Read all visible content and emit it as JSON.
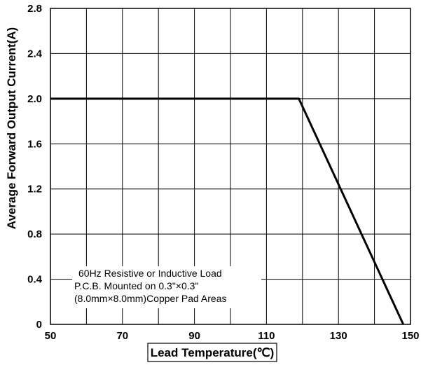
{
  "chart_data": {
    "type": "line",
    "title": "",
    "xlabel": "Lead Temperature(℃)",
    "ylabel": "Average Forward Output Current(A)",
    "xlim": [
      50,
      150
    ],
    "ylim": [
      0,
      2.8
    ],
    "x_ticks": [
      "50",
      "70",
      "90",
      "110",
      "130",
      "150"
    ],
    "y_ticks": [
      "0",
      "0.4",
      "0.8",
      "1.2",
      "1.6",
      "2.0",
      "2.4",
      "2.8"
    ],
    "grid": true,
    "series": [
      {
        "x": [
          50,
          119,
          148
        ],
        "y": [
          2.0,
          2.0,
          0
        ]
      }
    ],
    "annotation_lines": [
      "60Hz Resistive or Inductive Load",
      "P.C.B. Mounted on 0.3\"×0.3\"",
      "(8.0mm×8.0mm)Copper Pad Areas"
    ]
  }
}
